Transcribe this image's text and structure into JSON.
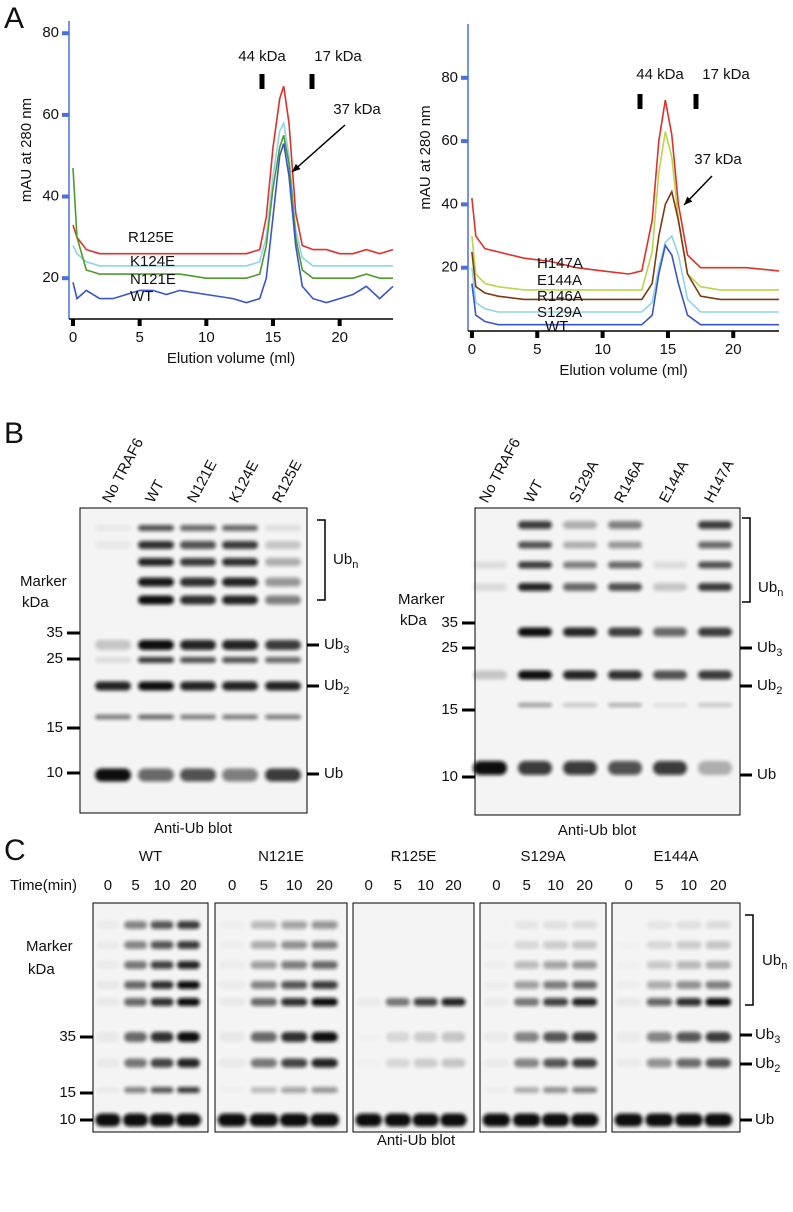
{
  "panels": {
    "a": "A",
    "b": "B",
    "c": "C"
  },
  "chart_data": [
    {
      "type": "line",
      "ylabel": "mAU at 280 nm",
      "xlabel": "Elution volume (ml)",
      "annotations": [
        "44 kDa",
        "17 kDa",
        "37 kDa"
      ],
      "xlim": [
        -0.3,
        24
      ],
      "ylim": [
        10,
        83
      ],
      "xticks": [
        0,
        5,
        10,
        15,
        20
      ],
      "yticks": [
        20,
        40,
        60,
        80
      ],
      "x": [
        0,
        0.3,
        1,
        2,
        3,
        4,
        5,
        6,
        7,
        8,
        10,
        12,
        13,
        14,
        14.5,
        15,
        15.5,
        15.8,
        16.2,
        16.7,
        17.2,
        18,
        19,
        20,
        21,
        22,
        23,
        24
      ],
      "series": [
        {
          "name": "R125E",
          "color": "#e0302a",
          "values": [
            33,
            30,
            27,
            26,
            26,
            26,
            26,
            26,
            26,
            26,
            26,
            26,
            26,
            27,
            35,
            52,
            64,
            67,
            58,
            36,
            28,
            27,
            27,
            26,
            26,
            27,
            26,
            27
          ]
        },
        {
          "name": "K124E",
          "color": "#8fd3e8",
          "values": [
            28,
            26,
            24,
            23,
            23,
            23,
            23,
            23,
            23,
            23,
            23,
            23,
            23,
            24,
            30,
            45,
            56,
            58,
            50,
            32,
            25,
            23,
            23,
            23,
            23,
            23,
            23,
            23
          ]
        },
        {
          "name": "N121E",
          "color": "#4f9a2e",
          "values": [
            47,
            30,
            22,
            21,
            21,
            21,
            21,
            21,
            21,
            21,
            20,
            20,
            20,
            21,
            28,
            42,
            52,
            55,
            48,
            30,
            22,
            20,
            20,
            20,
            20,
            21,
            20,
            20
          ]
        },
        {
          "name": "WT",
          "color": "#3a55c8",
          "values": [
            19,
            15,
            17,
            15,
            15,
            16,
            17,
            17,
            16,
            17,
            16,
            15,
            14,
            15,
            20,
            35,
            50,
            53,
            45,
            28,
            18,
            15,
            14,
            15,
            16,
            18,
            15,
            18
          ]
        }
      ]
    },
    {
      "type": "line",
      "ylabel": "mAU at 280 nm",
      "xlabel": "Elution volume (ml)",
      "annotations": [
        "44 kDa",
        "17 kDa",
        "37 kDa"
      ],
      "xlim": [
        -0.3,
        23.5
      ],
      "ylim": [
        0,
        97
      ],
      "xticks": [
        0,
        5,
        10,
        15,
        20
      ],
      "yticks": [
        20,
        40,
        60,
        80
      ],
      "x": [
        0,
        0.3,
        1,
        2,
        4,
        6,
        8,
        10,
        12,
        13,
        13.8,
        14.3,
        14.8,
        15.3,
        15.8,
        16.5,
        17.5,
        19,
        21,
        23.5
      ],
      "series": [
        {
          "name": "H147A",
          "color": "#e0302a",
          "values": [
            42,
            30,
            26,
            25,
            23,
            22,
            20,
            19,
            18,
            19,
            35,
            60,
            73,
            62,
            40,
            24,
            20,
            20,
            20,
            19
          ]
        },
        {
          "name": "E144A",
          "color": "#b9d64a",
          "values": [
            30,
            18,
            15,
            14,
            13,
            13,
            13,
            13,
            13,
            13,
            25,
            50,
            63,
            55,
            35,
            18,
            14,
            13,
            13,
            13
          ]
        },
        {
          "name": "R146A",
          "color": "#7a3b12",
          "values": [
            25,
            14,
            12,
            11,
            10,
            10,
            10,
            10,
            10,
            10,
            15,
            30,
            40,
            44,
            35,
            18,
            11,
            10,
            10,
            10
          ]
        },
        {
          "name": "S129A",
          "color": "#8fd3e8",
          "values": [
            20,
            9,
            7,
            6,
            6,
            6,
            6,
            6,
            6,
            6,
            9,
            20,
            28,
            30,
            24,
            10,
            6,
            6,
            6,
            6
          ]
        },
        {
          "name": "WT",
          "color": "#3a55c8",
          "values": [
            15,
            5,
            3,
            2,
            2,
            2,
            2,
            2,
            2,
            2,
            5,
            18,
            27,
            24,
            15,
            5,
            2,
            2,
            2,
            2
          ]
        }
      ]
    }
  ],
  "blot_b": [
    {
      "lanes": [
        "No TRAF6",
        "WT",
        "N121E",
        "K124E",
        "R125E"
      ],
      "marker": [
        "Marker",
        "kDa"
      ],
      "marker_sizes": [
        35,
        25,
        15,
        10
      ],
      "bands": [
        {
          "text": "Ub",
          "sub": "n"
        },
        {
          "text": "Ub",
          "sub": "3"
        },
        {
          "text": "Ub",
          "sub": "2"
        },
        {
          "text": "Ub",
          "sub": ""
        }
      ],
      "caption": "Anti-Ub blot"
    },
    {
      "lanes": [
        "No TRAF6",
        "WT",
        "S129A",
        "R146A",
        "E144A",
        "H147A"
      ],
      "marker": [
        "Marker",
        "kDa"
      ],
      "marker_sizes": [
        35,
        25,
        15,
        10
      ],
      "bands": [
        {
          "text": "Ub",
          "sub": "n"
        },
        {
          "text": "Ub",
          "sub": "3"
        },
        {
          "text": "Ub",
          "sub": "2"
        },
        {
          "text": "Ub",
          "sub": ""
        }
      ],
      "caption": "Anti-Ub blot"
    }
  ],
  "blot_c": {
    "time_label": "Time(min)",
    "groups": [
      "WT",
      "N121E",
      "R125E",
      "S129A",
      "E144A"
    ],
    "times": [
      "0",
      "5",
      "10",
      "20"
    ],
    "marker": [
      "Marker",
      "kDa"
    ],
    "marker_sizes": [
      35,
      15,
      10
    ],
    "bands": [
      {
        "text": "Ub",
        "sub": "n"
      },
      {
        "text": "Ub",
        "sub": "3"
      },
      {
        "text": "Ub",
        "sub": "2"
      },
      {
        "text": "Ub",
        "sub": ""
      }
    ],
    "caption": "Anti-Ub blot"
  }
}
